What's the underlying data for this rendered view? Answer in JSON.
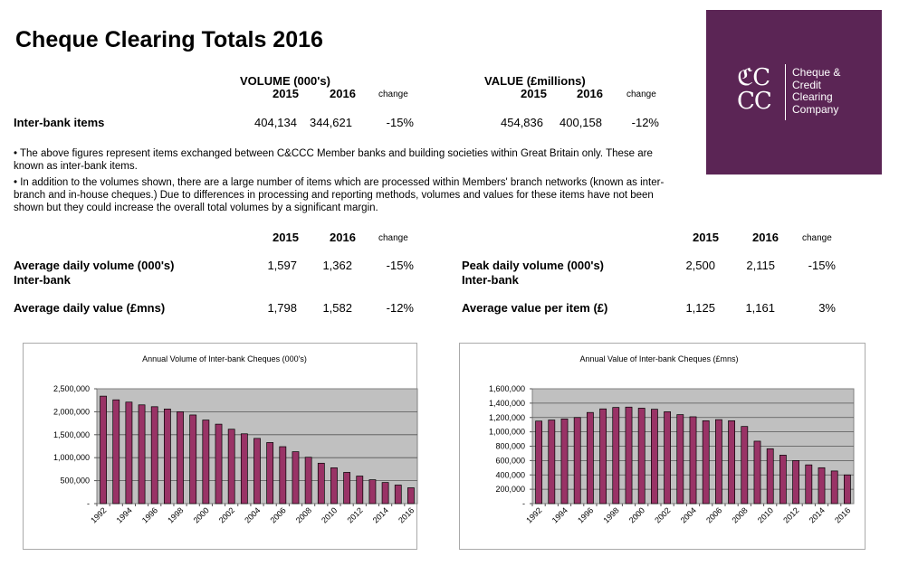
{
  "title": "Cheque Clearing Totals 2016",
  "volume_header": "VOLUME (000's)",
  "value_header": "VALUE (£millions)",
  "col_2015": "2015",
  "col_2016": "2016",
  "col_change": "change",
  "interbank": {
    "label": "Inter-bank items",
    "vol_2015": "404,134",
    "vol_2016": "344,621",
    "vol_change": "-15%",
    "val_2015": "454,836",
    "val_2016": "400,158",
    "val_change": "-12%"
  },
  "notes": [
    "• The above figures represent items exchanged between C&CCC Member banks and building societies within Great Britain only.  These are known as inter-bank items.",
    "• In addition to the volumes shown, there are a large number of items which are processed within Members' branch networks (known as inter-branch and in-house cheques.)  Due to differences in processing and reporting methods, volumes and values for these items have not been shown but they could increase the overall total volumes by a significant margin."
  ],
  "avg_volume": {
    "label": "Average daily volume (000's)",
    "sub": "Inter-bank",
    "v2015": "1,597",
    "v2016": "1,362",
    "change": "-15%"
  },
  "avg_value": {
    "label": "Average daily value (£mns)",
    "v2015": "1,798",
    "v2016": "1,582",
    "change": "-12%"
  },
  "peak_volume": {
    "label": "Peak daily volume (000's)",
    "sub": "Inter-bank",
    "v2015": "2,500",
    "v2016": "2,115",
    "change": "-15%"
  },
  "avg_item": {
    "label": "Average value per item (£)",
    "v2015": "1,125",
    "v2016": "1,161",
    "change": "3%"
  },
  "logo": {
    "monogram": "C&CC",
    "lines": [
      "Cheque &",
      "Credit",
      "Clearing",
      "Company"
    ],
    "bg": "#5b2555"
  },
  "chart_data": [
    {
      "type": "bar",
      "title": "Annual Volume of Inter-bank Cheques (000's)",
      "xlabel": "",
      "ylabel": "",
      "categories": [
        "1992",
        "1993",
        "1994",
        "1995",
        "1996",
        "1997",
        "1998",
        "1999",
        "2000",
        "2001",
        "2002",
        "2003",
        "2004",
        "2005",
        "2006",
        "2007",
        "2008",
        "2009",
        "2010",
        "2011",
        "2012",
        "2013",
        "2014",
        "2015",
        "2016"
      ],
      "values": [
        2340000,
        2260000,
        2210000,
        2150000,
        2110000,
        2060000,
        2000000,
        1930000,
        1820000,
        1730000,
        1620000,
        1520000,
        1420000,
        1330000,
        1240000,
        1130000,
        1010000,
        880000,
        780000,
        680000,
        600000,
        520000,
        460000,
        404134,
        344621
      ],
      "ylim": [
        0,
        2500000
      ],
      "yticks": [
        "-",
        "500,000",
        "1,000,000",
        "1,500,000",
        "2,000,000",
        "2,500,000"
      ],
      "tick_step": 500000,
      "grid": true,
      "bar_color": "#993366",
      "plot_bg": "#c0c0c0"
    },
    {
      "type": "bar",
      "title": "Annual Value of Inter-bank Cheques (£mns)",
      "xlabel": "",
      "ylabel": "",
      "categories": [
        "1992",
        "1993",
        "1994",
        "1995",
        "1996",
        "1997",
        "1998",
        "1999",
        "2000",
        "2001",
        "2002",
        "2003",
        "2004",
        "2005",
        "2006",
        "2007",
        "2008",
        "2009",
        "2010",
        "2011",
        "2012",
        "2013",
        "2014",
        "2015",
        "2016"
      ],
      "values": [
        1150000,
        1165000,
        1180000,
        1200000,
        1270000,
        1320000,
        1340000,
        1345000,
        1330000,
        1315000,
        1280000,
        1240000,
        1210000,
        1155000,
        1170000,
        1155000,
        1075000,
        870000,
        765000,
        675000,
        600000,
        540000,
        500000,
        454836,
        400158
      ],
      "ylim": [
        0,
        1600000
      ],
      "yticks": [
        "-",
        "200,000",
        "400,000",
        "600,000",
        "800,000",
        "1,000,000",
        "1,200,000",
        "1,400,000",
        "1,600,000"
      ],
      "tick_step": 200000,
      "grid": true,
      "bar_color": "#993366",
      "plot_bg": "#c0c0c0"
    }
  ]
}
